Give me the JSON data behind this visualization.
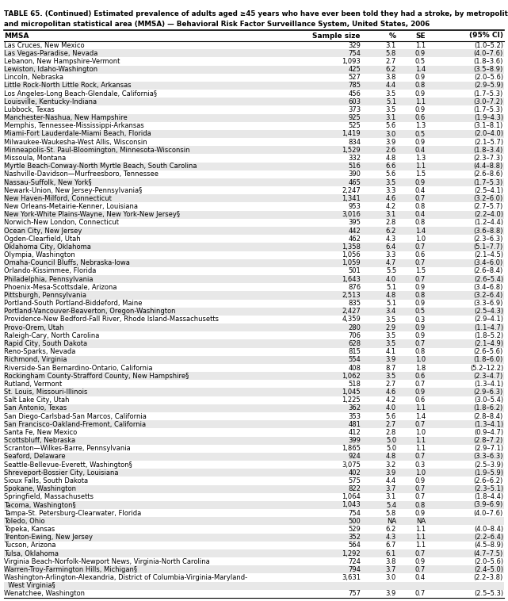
{
  "title_line1": "TABLE 65. (Continued) Estimated prevalence of adults aged ≥45 years who have ever been told they had a stroke, by metropolitan",
  "title_line2": "and micropolitan statistical area (MMSA) — Behavioral Risk Factor Surveillance System, United States, 2006",
  "col_headers": [
    "MMSA",
    "Sample size",
    "%",
    "SE",
    "(95% CI)"
  ],
  "rows": [
    [
      "Las Cruces, New Mexico",
      "329",
      "3.1",
      "1.1",
      "(1.0–5.2)"
    ],
    [
      "Las Vegas-Paradise, Nevada",
      "754",
      "5.8",
      "0.9",
      "(4.0–7.6)"
    ],
    [
      "Lebanon, New Hampshire-Vermont",
      "1,093",
      "2.7",
      "0.5",
      "(1.8–3.6)"
    ],
    [
      "Lewiston, Idaho-Washington",
      "425",
      "6.2",
      "1.4",
      "(3.5–8.9)"
    ],
    [
      "Lincoln, Nebraska",
      "527",
      "3.8",
      "0.9",
      "(2.0–5.6)"
    ],
    [
      "Little Rock-North Little Rock, Arkansas",
      "785",
      "4.4",
      "0.8",
      "(2.9–5.9)"
    ],
    [
      "Los Angeles-Long Beach-Glendale, California§",
      "456",
      "3.5",
      "0.9",
      "(1.7–5.3)"
    ],
    [
      "Louisville, Kentucky-Indiana",
      "603",
      "5.1",
      "1.1",
      "(3.0–7.2)"
    ],
    [
      "Lubbock, Texas",
      "373",
      "3.5",
      "0.9",
      "(1.7–5.3)"
    ],
    [
      "Manchester-Nashua, New Hampshire",
      "925",
      "3.1",
      "0.6",
      "(1.9–4.3)"
    ],
    [
      "Memphis, Tennessee-Mississippi-Arkansas",
      "525",
      "5.6",
      "1.3",
      "(3.1–8.1)"
    ],
    [
      "Miami-Fort Lauderdale-Miami Beach, Florida",
      "1,419",
      "3.0",
      "0.5",
      "(2.0–4.0)"
    ],
    [
      "Milwaukee-Waukesha-West Allis, Wisconsin",
      "834",
      "3.9",
      "0.9",
      "(2.1–5.7)"
    ],
    [
      "Minneapolis-St. Paul-Bloomington, Minnesota-Wisconsin",
      "1,529",
      "2.6",
      "0.4",
      "(1.8–3.4)"
    ],
    [
      "Missoula, Montana",
      "332",
      "4.8",
      "1.3",
      "(2.3–7.3)"
    ],
    [
      "Myrtle Beach-Conway-North Myrtle Beach, South Carolina",
      "516",
      "6.6",
      "1.1",
      "(4.4–8.8)"
    ],
    [
      "Nashville-Davidson—Murfreesboro, Tennessee",
      "390",
      "5.6",
      "1.5",
      "(2.6–8.6)"
    ],
    [
      "Nassau-Suffolk, New York§",
      "465",
      "3.5",
      "0.9",
      "(1.7–5.3)"
    ],
    [
      "Newark-Union, New Jersey-Pennsylvania§",
      "2,247",
      "3.3",
      "0.4",
      "(2.5–4.1)"
    ],
    [
      "New Haven-Milford, Connecticut",
      "1,341",
      "4.6",
      "0.7",
      "(3.2–6.0)"
    ],
    [
      "New Orleans-Metairie-Kenner, Louisiana",
      "953",
      "4.2",
      "0.8",
      "(2.7–5.7)"
    ],
    [
      "New York-White Plains-Wayne, New York-New Jersey§",
      "3,016",
      "3.1",
      "0.4",
      "(2.2–4.0)"
    ],
    [
      "Norwich-New London, Connecticut",
      "395",
      "2.8",
      "0.8",
      "(1.2–4.4)"
    ],
    [
      "Ocean City, New Jersey",
      "442",
      "6.2",
      "1.4",
      "(3.6–8.8)"
    ],
    [
      "Ogden-Clearfield, Utah",
      "462",
      "4.3",
      "1.0",
      "(2.3–6.3)"
    ],
    [
      "Oklahoma City, Oklahoma",
      "1,358",
      "6.4",
      "0.7",
      "(5.1–7.7)"
    ],
    [
      "Olympia, Washington",
      "1,056",
      "3.3",
      "0.6",
      "(2.1–4.5)"
    ],
    [
      "Omaha-Council Bluffs, Nebraska-Iowa",
      "1,059",
      "4.7",
      "0.7",
      "(3.4–6.0)"
    ],
    [
      "Orlando-Kissimmee, Florida",
      "501",
      "5.5",
      "1.5",
      "(2.6–8.4)"
    ],
    [
      "Philadelphia, Pennsylvania",
      "1,643",
      "4.0",
      "0.7",
      "(2.6–5.4)"
    ],
    [
      "Phoenix-Mesa-Scottsdale, Arizona",
      "876",
      "5.1",
      "0.9",
      "(3.4–6.8)"
    ],
    [
      "Pittsburgh, Pennsylvania",
      "2,513",
      "4.8",
      "0.8",
      "(3.2–6.4)"
    ],
    [
      "Portland-South Portland-Biddeford, Maine",
      "835",
      "5.1",
      "0.9",
      "(3.3–6.9)"
    ],
    [
      "Portland-Vancouver-Beaverton, Oregon-Washington",
      "2,427",
      "3.4",
      "0.5",
      "(2.5–4.3)"
    ],
    [
      "Providence-New Bedford-Fall River, Rhode Island-Massachusetts",
      "4,359",
      "3.5",
      "0.3",
      "(2.9–4.1)"
    ],
    [
      "Provo-Orem, Utah",
      "280",
      "2.9",
      "0.9",
      "(1.1–4.7)"
    ],
    [
      "Raleigh-Cary, North Carolina",
      "706",
      "3.5",
      "0.9",
      "(1.8–5.2)"
    ],
    [
      "Rapid City, South Dakota",
      "628",
      "3.5",
      "0.7",
      "(2.1–4.9)"
    ],
    [
      "Reno-Sparks, Nevada",
      "815",
      "4.1",
      "0.8",
      "(2.6–5.6)"
    ],
    [
      "Richmond, Virginia",
      "554",
      "3.9",
      "1.0",
      "(1.8–6.0)"
    ],
    [
      "Riverside-San Bernardino-Ontario, California",
      "408",
      "8.7",
      "1.8",
      "(5.2–12.2)"
    ],
    [
      "Rockingham County-Strafford County, New Hampshire§",
      "1,062",
      "3.5",
      "0.6",
      "(2.3–4.7)"
    ],
    [
      "Rutland, Vermont",
      "518",
      "2.7",
      "0.7",
      "(1.3–4.1)"
    ],
    [
      "St. Louis, Missouri-Illinois",
      "1,045",
      "4.6",
      "0.9",
      "(2.9–6.3)"
    ],
    [
      "Salt Lake City, Utah",
      "1,225",
      "4.2",
      "0.6",
      "(3.0–5.4)"
    ],
    [
      "San Antonio, Texas",
      "362",
      "4.0",
      "1.1",
      "(1.8–6.2)"
    ],
    [
      "San Diego-Carlsbad-San Marcos, California",
      "353",
      "5.6",
      "1.4",
      "(2.8–8.4)"
    ],
    [
      "San Francisco-Oakland-Fremont, California",
      "481",
      "2.7",
      "0.7",
      "(1.3–4.1)"
    ],
    [
      "Santa Fe, New Mexico",
      "412",
      "2.8",
      "1.0",
      "(0.9–4.7)"
    ],
    [
      "Scottsbluff, Nebraska",
      "399",
      "5.0",
      "1.1",
      "(2.8–7.2)"
    ],
    [
      "Scranton—Wilkes-Barre, Pennsylvania",
      "1,865",
      "5.0",
      "1.1",
      "(2.9–7.1)"
    ],
    [
      "Seaford, Delaware",
      "924",
      "4.8",
      "0.7",
      "(3.3–6.3)"
    ],
    [
      "Seattle-Bellevue-Everett, Washington§",
      "3,075",
      "3.2",
      "0.3",
      "(2.5–3.9)"
    ],
    [
      "Shreveport-Bossier City, Louisiana",
      "402",
      "3.9",
      "1.0",
      "(1.9–5.9)"
    ],
    [
      "Sioux Falls, South Dakota",
      "575",
      "4.4",
      "0.9",
      "(2.6–6.2)"
    ],
    [
      "Spokane, Washington",
      "822",
      "3.7",
      "0.7",
      "(2.3–5.1)"
    ],
    [
      "Springfield, Massachusetts",
      "1,064",
      "3.1",
      "0.7",
      "(1.8–4.4)"
    ],
    [
      "Tacoma, Washington§",
      "1,043",
      "5.4",
      "0.8",
      "(3.9–6.9)"
    ],
    [
      "Tampa-St. Petersburg-Clearwater, Florida",
      "754",
      "5.8",
      "0.9",
      "(4.0–7.6)"
    ],
    [
      "Toledo, Ohio",
      "500",
      "NA",
      "NA",
      ""
    ],
    [
      "Topeka, Kansas",
      "529",
      "6.2",
      "1.1",
      "(4.0–8.4)"
    ],
    [
      "Trenton-Ewing, New Jersey",
      "352",
      "4.3",
      "1.1",
      "(2.2–6.4)"
    ],
    [
      "Tucson, Arizona",
      "564",
      "6.7",
      "1.1",
      "(4.5–8.9)"
    ],
    [
      "Tulsa, Oklahoma",
      "1,292",
      "6.1",
      "0.7",
      "(4.7–7.5)"
    ],
    [
      "Virginia Beach-Norfolk-Newport News, Virginia-North Carolina",
      "724",
      "3.8",
      "0.9",
      "(2.0–5.6)"
    ],
    [
      "Warren-Troy-Farmington Hills, Michigan§",
      "794",
      "3.7",
      "0.7",
      "(2.4–5.0)"
    ],
    [
      "Washington-Arlington-Alexandria, District of Columbia-Virginia-Maryland-",
      "3,631",
      "3.0",
      "0.4",
      "(2.2–3.8)"
    ],
    [
      "  West Virginia§",
      "",
      "",
      "",
      ""
    ],
    [
      "Wenatchee, Washington",
      "757",
      "3.9",
      "0.7",
      "(2.5–5.3)"
    ]
  ],
  "bg_color": "#ffffff",
  "alt_row_color": "#e8e8e8",
  "font_size": 6.0,
  "header_font_size": 6.5,
  "title_font_size": 6.3
}
